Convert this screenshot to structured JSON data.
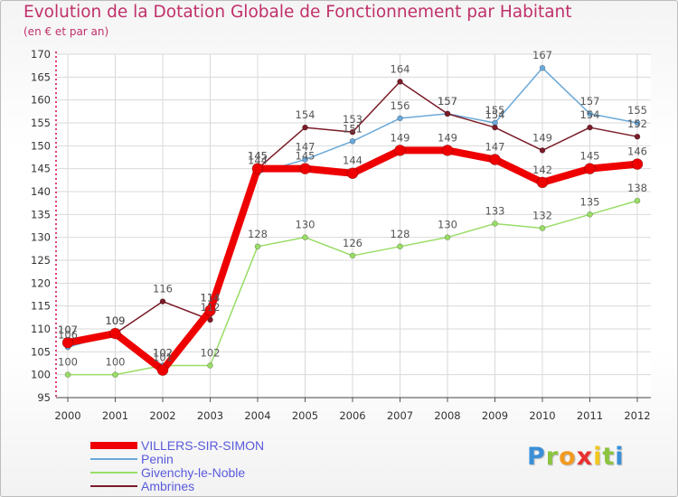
{
  "header": {
    "title": "Evolution de la Dotation Globale de Fonctionnement par Habitant",
    "subtitle": "(en € et par an)"
  },
  "colors": {
    "title": "#c0306a",
    "legend_text": "#5a5adc",
    "axis": "#d4004c",
    "grid": "#d9d9d9"
  },
  "chart_data": {
    "type": "line",
    "title": "Evolution de la Dotation Globale de Fonctionnement par Habitant",
    "subtitle": "(en € et par an)",
    "xlabel": "",
    "ylabel": "",
    "ylim": [
      95,
      170
    ],
    "yticks": [
      95,
      100,
      105,
      110,
      115,
      120,
      125,
      130,
      135,
      140,
      145,
      150,
      155,
      160,
      165,
      170
    ],
    "grid": true,
    "legend_position": "bottom-left",
    "x": [
      "2000",
      "2001",
      "2002",
      "2003",
      "2004",
      "2005",
      "2006",
      "2007",
      "2008",
      "2009",
      "2010",
      "2011",
      "2012"
    ],
    "series": [
      {
        "name": "Givenchy-le-Noble",
        "color": "#99dd66",
        "width": 1.5,
        "dot": 3,
        "values": [
          100,
          100,
          102,
          102,
          128,
          130,
          126,
          128,
          130,
          133,
          132,
          135,
          138
        ]
      },
      {
        "name": "Penin",
        "color": "#6aa9d9",
        "width": 1.5,
        "dot": 3,
        "values": [
          106,
          109,
          102,
          114,
          144,
          147,
          151,
          156,
          157,
          155,
          167,
          157,
          155
        ]
      },
      {
        "name": "Ambrines",
        "color": "#7a1c28",
        "width": 1.5,
        "dot": 3,
        "values": [
          107,
          109,
          116,
          112,
          145,
          154,
          153,
          164,
          157,
          154,
          149,
          154,
          152
        ]
      },
      {
        "name": "VILLERS-SIR-SIMON",
        "color": "#ee0000",
        "width": 8,
        "dot": 6,
        "values": [
          107,
          109,
          101,
          114,
          145,
          145,
          144,
          149,
          149,
          147,
          142,
          145,
          146
        ]
      }
    ]
  },
  "legend": {
    "items": [
      {
        "label": "VILLERS-SIR-SIMON",
        "color": "#ee0000"
      },
      {
        "label": "Penin",
        "color": "#6aa9d9"
      },
      {
        "label": "Givenchy-le-Noble",
        "color": "#99dd66"
      },
      {
        "label": "Ambrines",
        "color": "#7a1c28"
      }
    ]
  },
  "logo": {
    "letters": [
      "P",
      "r",
      "o",
      "x",
      "i",
      "t",
      "i"
    ],
    "colors": [
      "#3a8fd8",
      "#8bc43f",
      "#f29a1f",
      "#e8312f",
      "#f2c81f",
      "#8bc43f",
      "#3a8fd8"
    ]
  }
}
